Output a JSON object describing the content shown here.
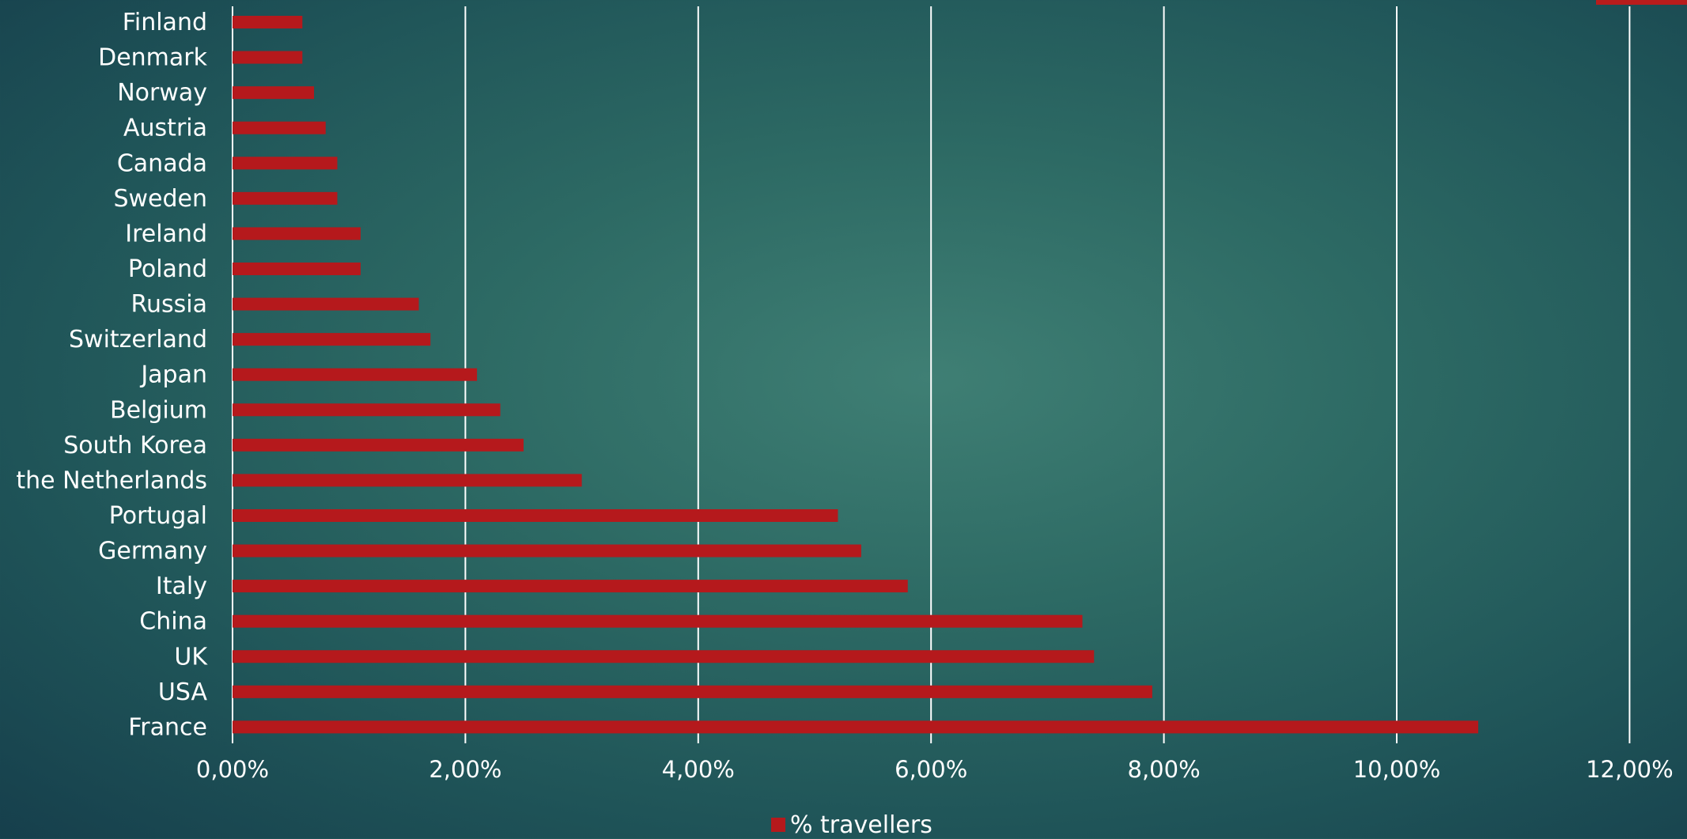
{
  "chart_data": {
    "type": "bar",
    "orientation": "horizontal",
    "categories": [
      "France",
      "USA",
      "UK",
      "China",
      "Italy",
      "Germany",
      "Portugal",
      "the Netherlands",
      "South Korea",
      "Belgium",
      "Japan",
      "Switzerland",
      "Russia",
      "Poland",
      "Ireland",
      "Sweden",
      "Canada",
      "Austria",
      "Norway",
      "Denmark",
      "Finland"
    ],
    "series": [
      {
        "name": "% travellers",
        "values": [
          10.7,
          7.9,
          7.4,
          7.3,
          5.8,
          5.4,
          5.2,
          3.0,
          2.5,
          2.3,
          2.1,
          1.7,
          1.6,
          1.1,
          1.1,
          0.9,
          0.9,
          0.8,
          0.7,
          0.6,
          0.6
        ]
      }
    ],
    "x_ticks": [
      "0,00%",
      "2,00%",
      "4,00%",
      "6,00%",
      "8,00%",
      "10,00%",
      "12,00%"
    ],
    "xlim": [
      0,
      12
    ],
    "grid": true,
    "legend_position": "bottom",
    "bar_color": "#b5191c",
    "grid_color": "#ffffff",
    "text_color": "#ffffff"
  },
  "decor": {
    "corner_accent_color": "#b81c1c"
  }
}
